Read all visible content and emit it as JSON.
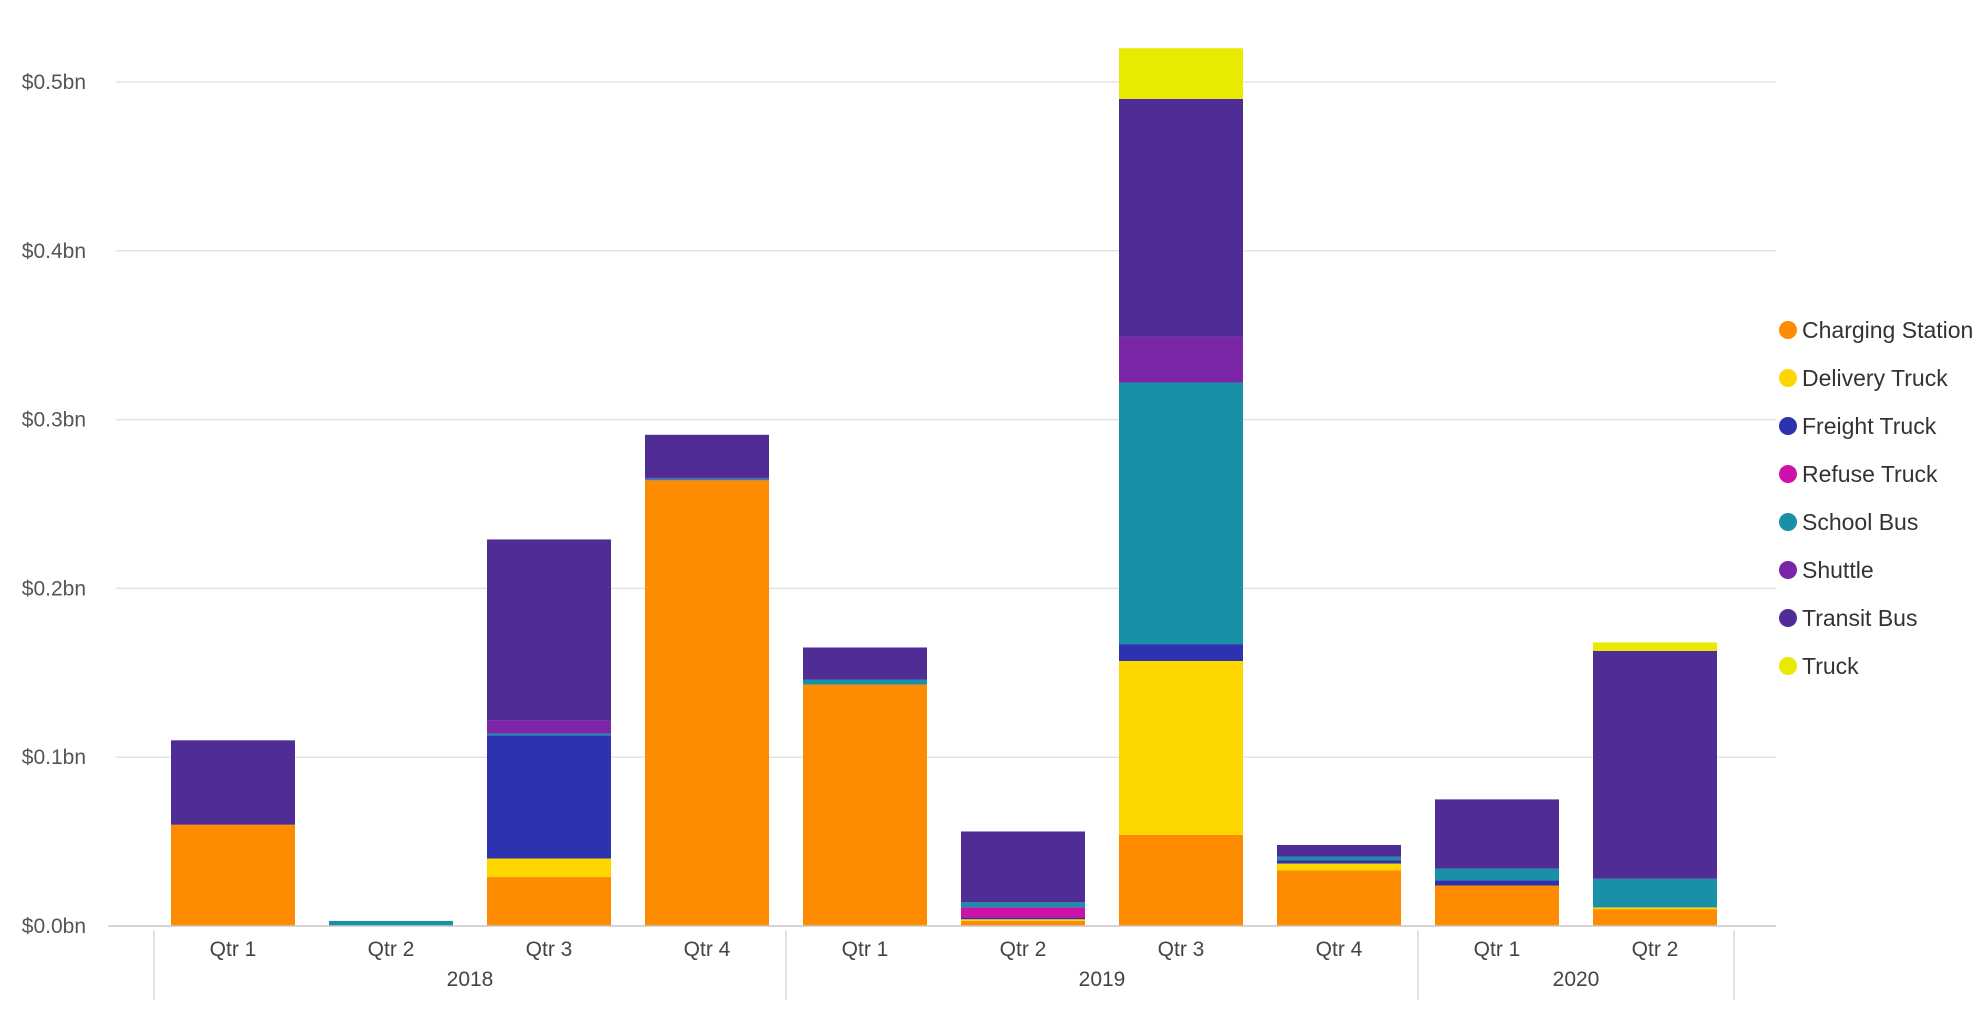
{
  "chart_data": {
    "type": "bar",
    "stacked": true,
    "title": "",
    "xlabel": "",
    "ylabel": "",
    "ylim": [
      0,
      0.52
    ],
    "y_ticks": [
      {
        "value": 0.0,
        "label": "$0.0bn"
      },
      {
        "value": 0.1,
        "label": "$0.1bn"
      },
      {
        "value": 0.2,
        "label": "$0.2bn"
      },
      {
        "value": 0.3,
        "label": "$0.3bn"
      },
      {
        "value": 0.4,
        "label": "$0.4bn"
      },
      {
        "value": 0.5,
        "label": "$0.5bn"
      }
    ],
    "grid": true,
    "legend_position": "right",
    "categories": [
      "Qtr 1",
      "Qtr 2",
      "Qtr 3",
      "Qtr 4",
      "Qtr 1",
      "Qtr 2",
      "Qtr 3",
      "Qtr 4",
      "Qtr 1",
      "Qtr 2"
    ],
    "groups": [
      {
        "label": "2018",
        "count": 4
      },
      {
        "label": "2019",
        "count": 4
      },
      {
        "label": "2020",
        "count": 2
      }
    ],
    "series": [
      {
        "name": "Charging Station",
        "color": "#FF8C00",
        "values": [
          0.06,
          0.0,
          0.029,
          0.264,
          0.143,
          0.003,
          0.054,
          0.033,
          0.024,
          0.01
        ]
      },
      {
        "name": "Delivery Truck",
        "color": "#FDD600",
        "values": [
          0.0,
          0.0,
          0.011,
          0.0,
          0.0,
          0.001,
          0.103,
          0.004,
          0.0,
          0.001
        ]
      },
      {
        "name": "Freight Truck",
        "color": "#2D33B0",
        "values": [
          0.0,
          0.0,
          0.073,
          0.0,
          0.0,
          0.001,
          0.01,
          0.002,
          0.003,
          0.0
        ]
      },
      {
        "name": "Refuse Truck",
        "color": "#CC12A8",
        "values": [
          0.0,
          0.0,
          0.0,
          0.0,
          0.0,
          0.006,
          0.0,
          0.0,
          0.0,
          0.0
        ]
      },
      {
        "name": "School Bus",
        "color": "#1A8FA8",
        "values": [
          0.0,
          0.003,
          0.001,
          0.001,
          0.003,
          0.003,
          0.155,
          0.002,
          0.007,
          0.017
        ]
      },
      {
        "name": "Shuttle",
        "color": "#7B26A6",
        "values": [
          0.0,
          0.0,
          0.008,
          0.001,
          0.0,
          0.0,
          0.027,
          0.0,
          0.0,
          0.0
        ]
      },
      {
        "name": "Transit Bus",
        "color": "#4F2D94",
        "values": [
          0.05,
          0.0,
          0.107,
          0.025,
          0.019,
          0.042,
          0.141,
          0.007,
          0.041,
          0.135
        ]
      },
      {
        "name": "Truck",
        "color": "#E8EB00",
        "values": [
          0.0,
          0.0,
          0.0,
          0.0,
          0.0,
          0.0,
          0.03,
          0.0,
          0.0,
          0.005
        ]
      }
    ]
  }
}
